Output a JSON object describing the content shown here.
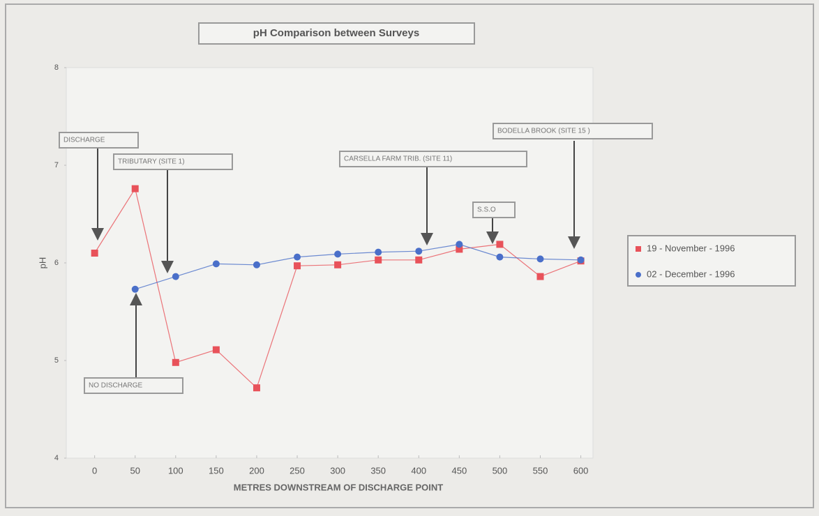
{
  "chart_data": {
    "type": "line",
    "title": "pH Comparison between Surveys",
    "xlabel": "METRES DOWNSTREAM OF DISCHARGE POINT",
    "ylabel": "pH",
    "x": [
      0,
      50,
      100,
      150,
      200,
      250,
      300,
      350,
      400,
      450,
      500,
      550,
      600
    ],
    "series": [
      {
        "name": "19 - November - 1996",
        "color": "#e8525a",
        "marker": "square",
        "values": [
          6.1,
          6.76,
          4.98,
          5.11,
          4.72,
          5.97,
          5.98,
          6.03,
          6.03,
          6.14,
          6.19,
          5.86,
          6.02
        ]
      },
      {
        "name": "02 - December - 1996",
        "color": "#4a6fc9",
        "marker": "circle",
        "values": [
          null,
          5.73,
          5.86,
          5.99,
          5.98,
          6.06,
          6.09,
          6.11,
          6.12,
          6.19,
          6.06,
          6.04,
          6.03
        ]
      }
    ],
    "xlim": [
      -35,
      615
    ],
    "xticks": [
      0,
      50,
      100,
      150,
      200,
      250,
      300,
      350,
      400,
      450,
      500,
      550,
      600
    ],
    "ylim": [
      4,
      8
    ],
    "yticks": [
      4,
      5,
      6,
      7,
      8
    ],
    "legend": "right",
    "annotations": [
      "DISCHARGE",
      "TRIBUTARY (SITE 1)",
      "CARSELLA FARM TRIB. (SITE 11)",
      "S.S.O",
      "BODELLA BROOK (SITE 15 )",
      "NO DISCHARGE"
    ]
  }
}
